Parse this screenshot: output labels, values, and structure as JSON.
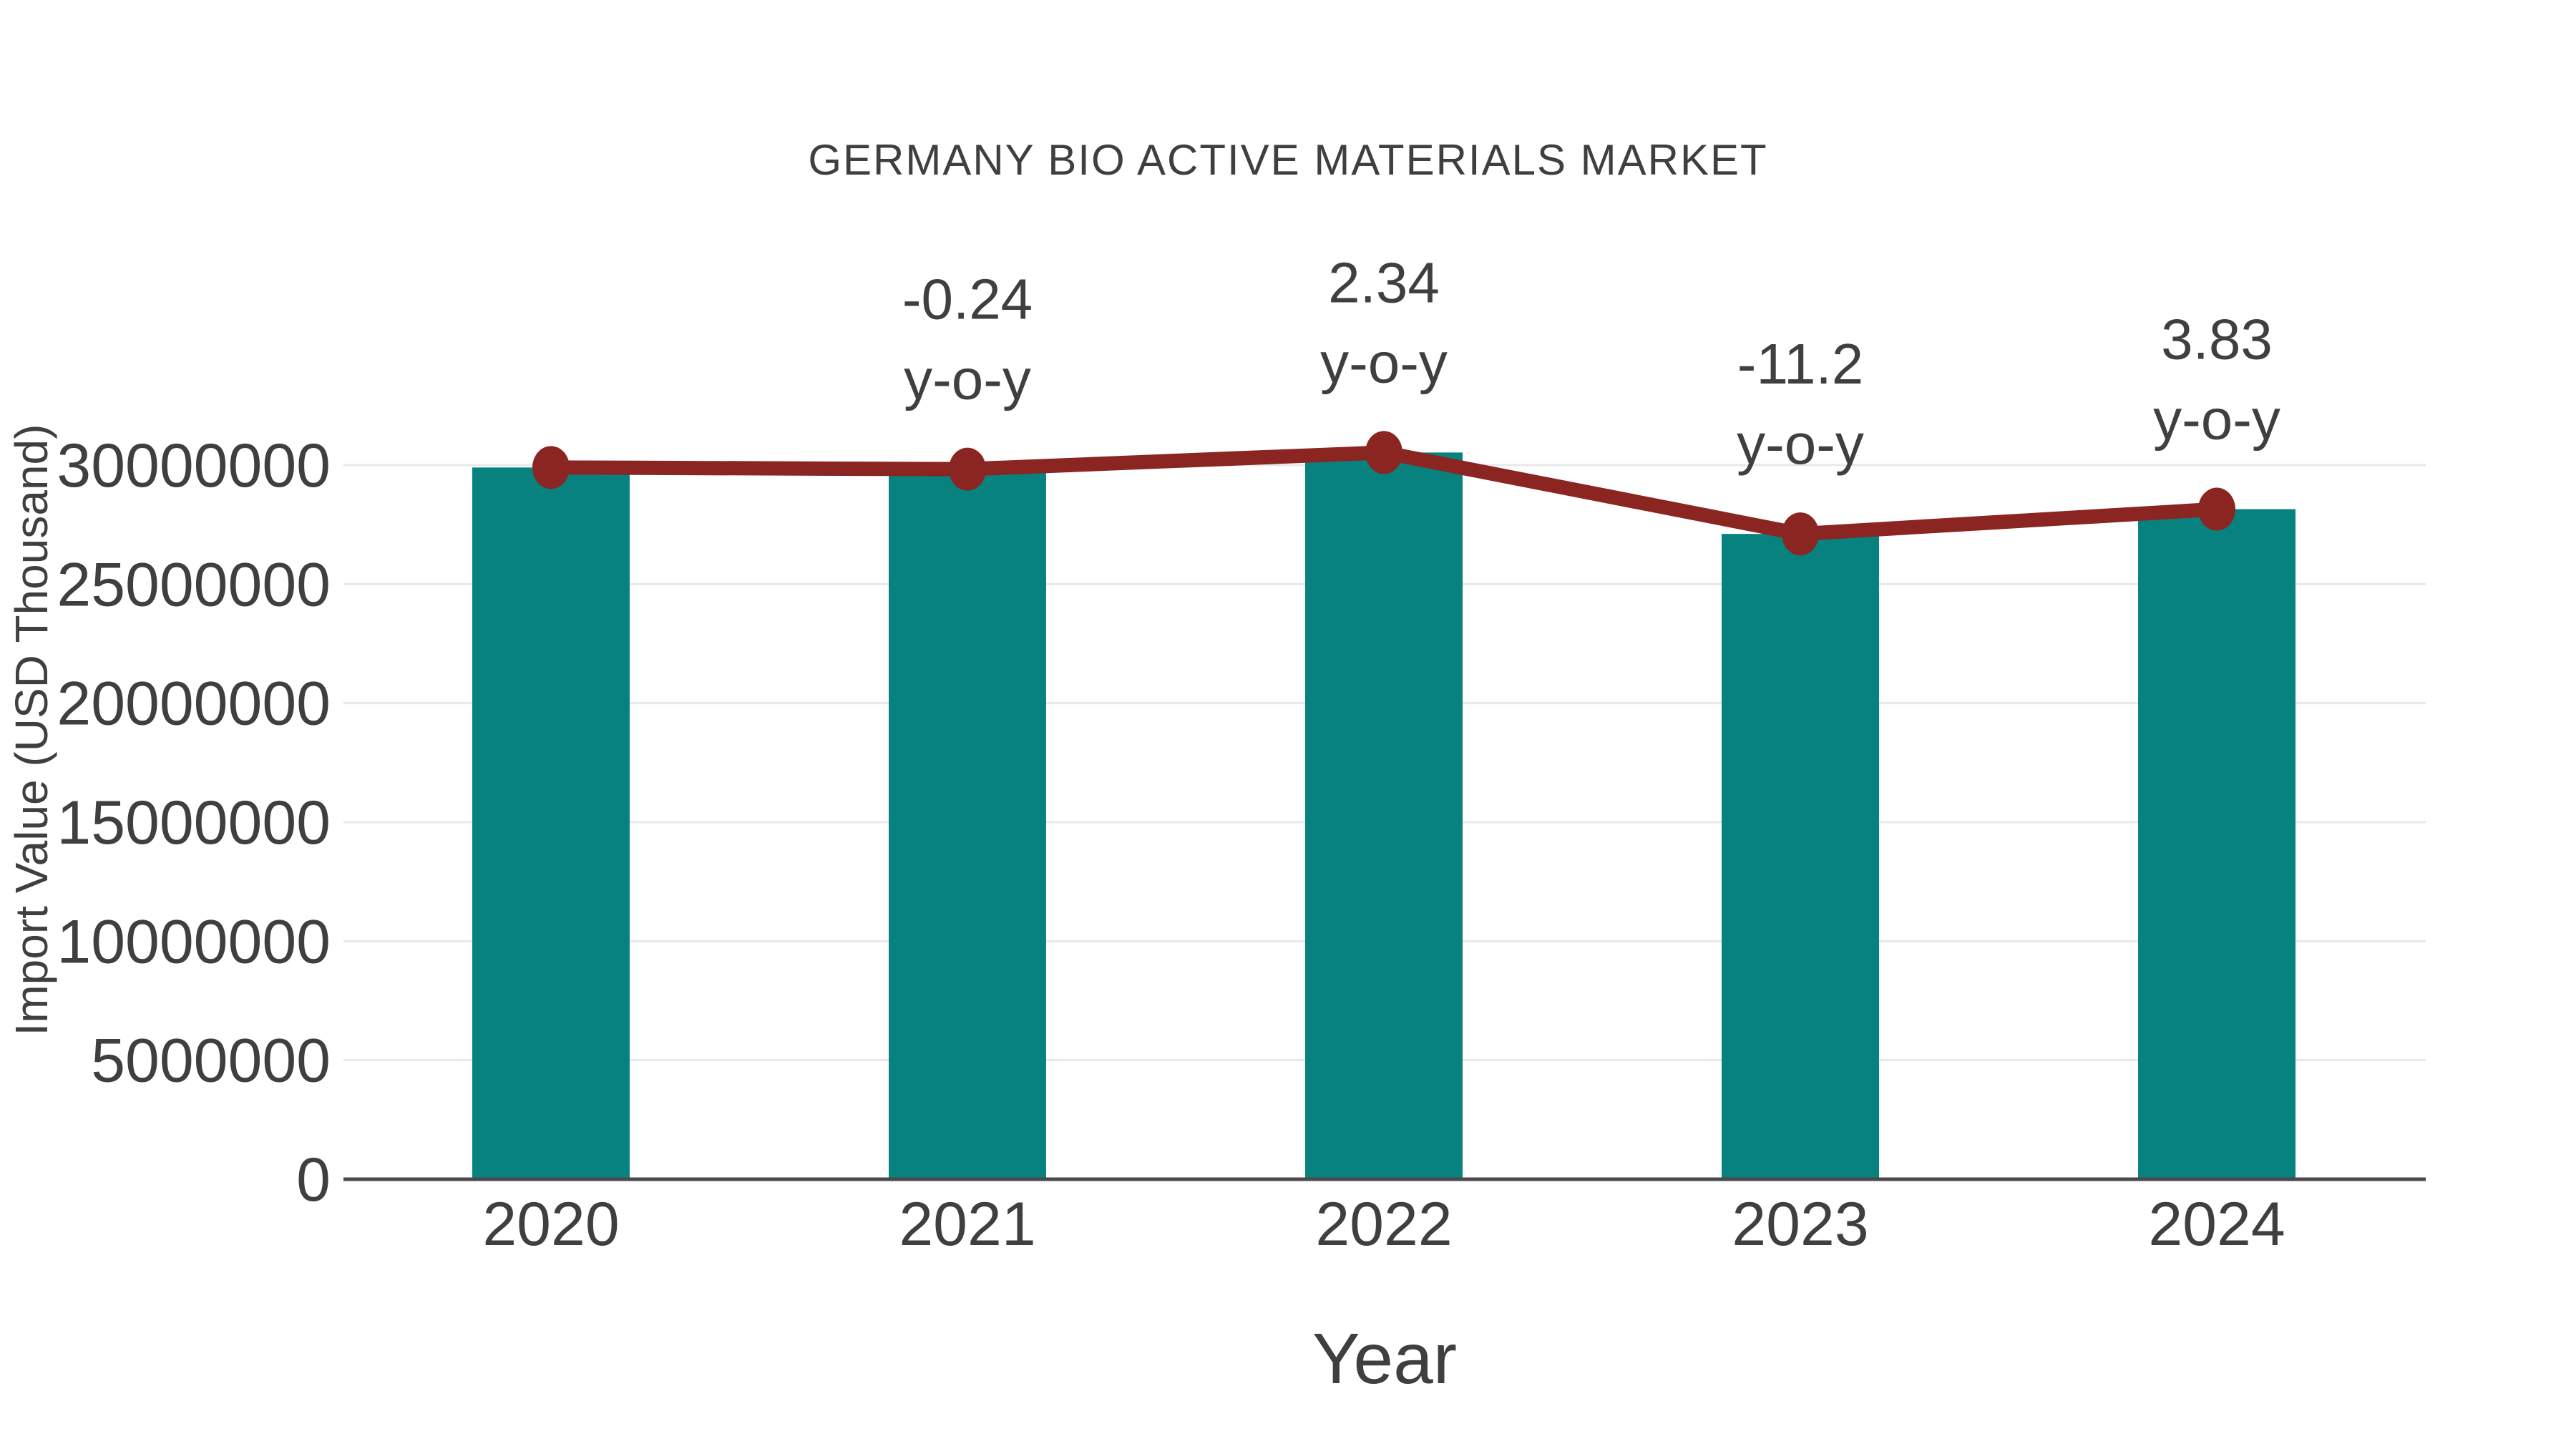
{
  "chart": {
    "title": "GERMANY BIO ACTIVE MATERIALS MARKET",
    "xlabel": "Year",
    "ylabel": "Import Value (USD Thousand)"
  },
  "chart_data": {
    "type": "bar",
    "title": "GERMANY BIO ACTIVE MATERIALS MARKET",
    "xlabel": "Year",
    "ylabel": "Import Value (USD Thousand)",
    "categories": [
      "2020",
      "2021",
      "2022",
      "2023",
      "2024"
    ],
    "series": [
      {
        "name": "Import Value (USD Thousand)",
        "type": "bar",
        "values": [
          29900000,
          29830000,
          30530000,
          27110000,
          28150000
        ]
      },
      {
        "name": "y-o-y trend",
        "type": "line",
        "values": [
          29900000,
          29830000,
          30530000,
          27110000,
          28150000
        ]
      }
    ],
    "yoy_labels": [
      null,
      "-0.24",
      "2.34",
      "-11.2",
      "3.83"
    ],
    "annotation_suffix": "y-o-y",
    "ytick_values": [
      0,
      5000000,
      10000000,
      15000000,
      20000000,
      25000000,
      30000000
    ],
    "ytick_labels": [
      "0",
      "5000000",
      "10000000",
      "15000000",
      "20000000",
      "25000000",
      "30000000"
    ],
    "ylim": [
      0,
      32500000
    ],
    "grid": "horizontal-only",
    "legend": "none",
    "colors": {
      "bar": "#08827F",
      "line": "#8A2522",
      "marker": "#8A2522",
      "text": "#3F3F3F",
      "grid": "#E8E8E8",
      "axis": "#4A4A4A",
      "background": "#FFFFFF"
    }
  }
}
